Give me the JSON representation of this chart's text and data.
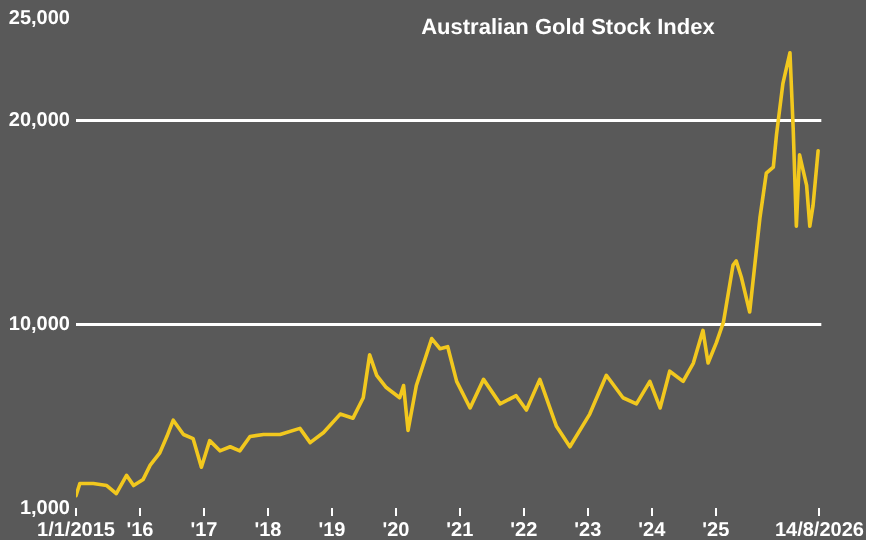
{
  "chart_data": {
    "type": "line",
    "title": "Australian Gold Stock Index",
    "x": [
      2015.0,
      2015.06,
      2015.27,
      2015.48,
      2015.63,
      2015.79,
      2015.9,
      2016.05,
      2016.16,
      2016.31,
      2016.42,
      2016.52,
      2016.68,
      2016.83,
      2016.96,
      2017.09,
      2017.25,
      2017.41,
      2017.56,
      2017.72,
      2017.93,
      2018.19,
      2018.5,
      2018.66,
      2018.87,
      2019.13,
      2019.33,
      2019.49,
      2019.59,
      2019.7,
      2019.85,
      2020.06,
      2020.12,
      2020.19,
      2020.32,
      2020.56,
      2020.69,
      2020.81,
      2020.95,
      2021.16,
      2021.37,
      2021.63,
      2021.88,
      2022.04,
      2022.25,
      2022.51,
      2022.72,
      2023.03,
      2023.29,
      2023.55,
      2023.76,
      2023.97,
      2024.13,
      2024.28,
      2024.49,
      2024.65,
      2024.8,
      2024.88,
      2025.01,
      2025.12,
      2025.27,
      2025.32,
      2025.4,
      2025.53,
      2025.69,
      2025.79,
      2025.9,
      2025.95,
      2026.05,
      2026.16,
      2026.21,
      2026.26,
      2026.31,
      2026.42,
      2026.47,
      2026.52,
      2026.6
    ],
    "series": [
      {
        "color": "#f2c81e",
        "values": [
          1600,
          2200,
          2200,
          2100,
          1700,
          2600,
          2100,
          2400,
          3100,
          3700,
          4500,
          5300,
          4600,
          4400,
          3000,
          4300,
          3800,
          4000,
          3800,
          4500,
          4600,
          4600,
          4900,
          4200,
          4700,
          5600,
          5400,
          6400,
          8500,
          7500,
          6900,
          6400,
          7000,
          4800,
          7000,
          9300,
          8800,
          8900,
          7200,
          5900,
          7300,
          6100,
          6500,
          5800,
          7300,
          5000,
          4000,
          5600,
          7500,
          6400,
          6100,
          7200,
          5900,
          7700,
          7200,
          8100,
          9700,
          8100,
          9100,
          10100,
          12900,
          13100,
          12300,
          10600,
          15200,
          17400,
          17700,
          19300,
          21800,
          23300,
          19600,
          14800,
          18300,
          16800,
          14800,
          15800,
          18500
        ]
      }
    ],
    "xlim": [
      2015,
      2026.65
    ],
    "xticks": [
      {
        "value": 2015,
        "label": "1/1/2015"
      },
      {
        "value": 2016,
        "label": "'16"
      },
      {
        "value": 2017,
        "label": "'17"
      },
      {
        "value": 2018,
        "label": "'18"
      },
      {
        "value": 2019,
        "label": "'19"
      },
      {
        "value": 2020,
        "label": "'20"
      },
      {
        "value": 2021,
        "label": "'21"
      },
      {
        "value": 2022,
        "label": "'22"
      },
      {
        "value": 2023,
        "label": "'23"
      },
      {
        "value": 2024,
        "label": "'24"
      },
      {
        "value": 2025,
        "label": "'25"
      },
      {
        "value": 2026.62,
        "label": "14/8/2026"
      }
    ],
    "ylim": [
      1000,
      25000
    ],
    "yticks": [
      {
        "value": 1000,
        "label": "1,000"
      },
      {
        "value": 10000,
        "label": "10,000"
      },
      {
        "value": 20000,
        "label": "20,000"
      },
      {
        "value": 25000,
        "label": "25,000"
      }
    ],
    "grid": "y",
    "legend": false,
    "marker": "none",
    "line_style": "solid"
  }
}
